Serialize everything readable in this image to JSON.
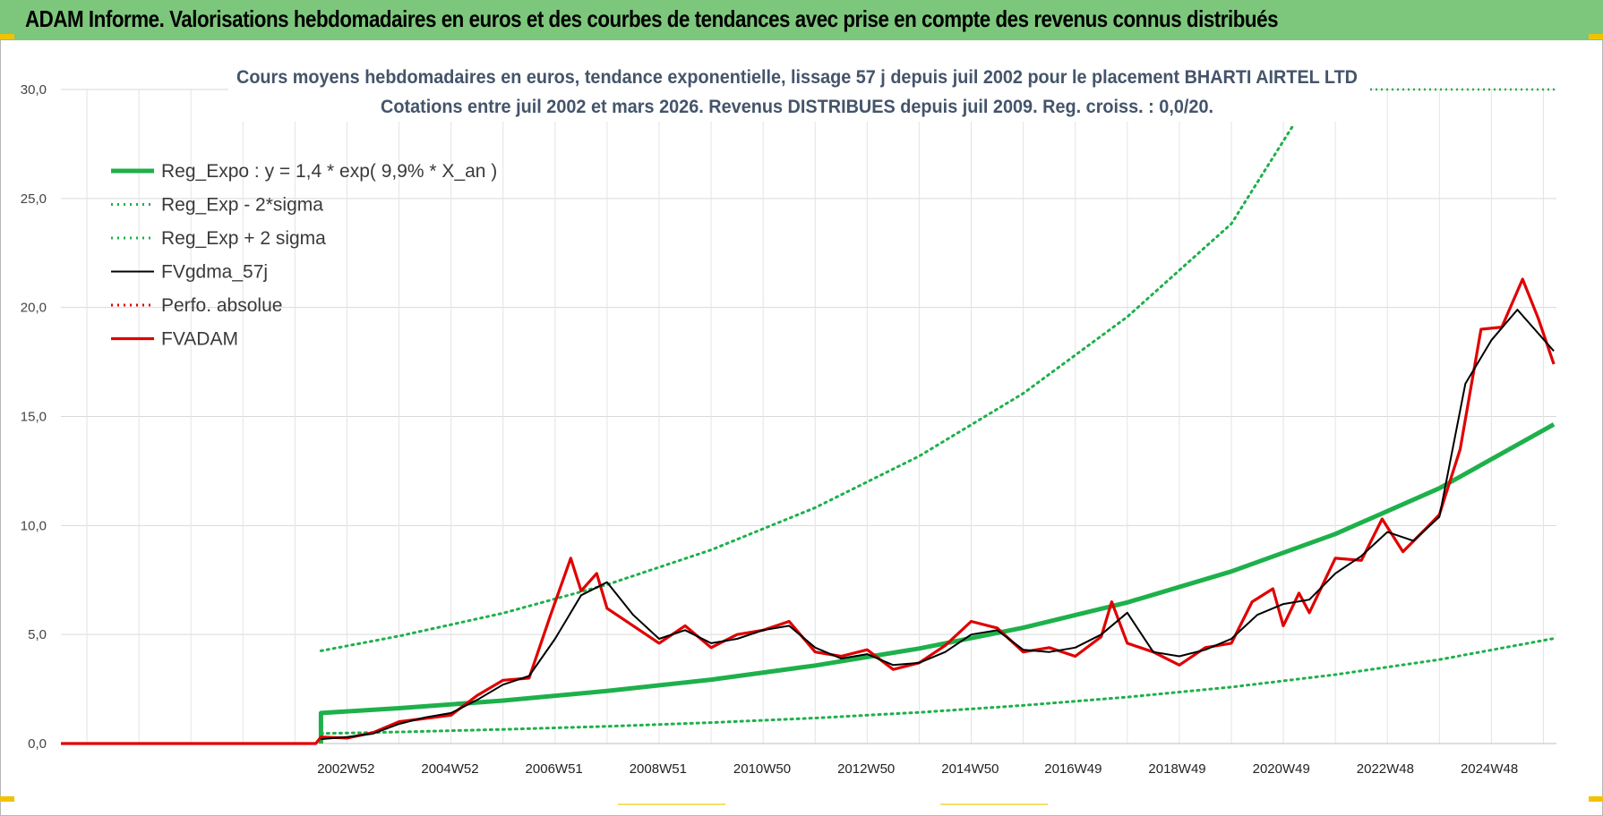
{
  "banner": {
    "title": "ADAM Informe. Valorisations hebdomadaires en euros et des courbes de tendances avec prise en compte des revenus connus distribués",
    "background": "#7cc77c"
  },
  "chart_data": {
    "type": "line",
    "title": "Cours moyens hebdomadaires en euros, tendance exponentielle, lissage 57 j depuis juil 2002 pour le placement BHARTI AIRTEL LTD",
    "subtitle": "Cotations entre juil 2002 et mars 2026. Revenus DISTRIBUES depuis juil 2009. Reg. croiss. : 0,0/20.",
    "xlabel": "",
    "ylabel": "",
    "ylim": [
      0,
      30
    ],
    "y_ticks": [
      "0,0",
      "5,0",
      "10,0",
      "15,0",
      "20,0",
      "25,0",
      "30,0"
    ],
    "x_tick_labels": [
      "2002W52",
      "2004W52",
      "2006W51",
      "2008W51",
      "2010W50",
      "2012W50",
      "2014W50",
      "2016W49",
      "2018W49",
      "2020W49",
      "2022W48",
      "2024W48"
    ],
    "x_tick_years": [
      2002.98,
      2004.98,
      2006.98,
      2008.98,
      2010.98,
      2012.98,
      2014.98,
      2016.96,
      2018.96,
      2020.96,
      2022.96,
      2024.96
    ],
    "x_range": [
      1997.5,
      2026.25
    ],
    "grid": true,
    "legend_position": "top-left",
    "regression": {
      "a": 1.4,
      "rate_pct": 9.9,
      "start_year": 2002.5
    },
    "series": [
      {
        "name": "Reg_Expo : y = 1,4 * exp( 9,9% *  X_an )",
        "color": "#1db04b",
        "style": "solid-thick",
        "x": [
          1997.5,
          2002.5,
          2002.5,
          2004,
          2006,
          2008,
          2010,
          2012,
          2014,
          2016,
          2018,
          2020,
          2022,
          2024,
          2026.2
        ],
        "y": [
          null,
          0,
          1.4,
          1.62,
          1.97,
          2.41,
          2.93,
          3.58,
          4.36,
          5.31,
          6.47,
          7.89,
          9.61,
          11.71,
          14.64
        ]
      },
      {
        "name": "Reg_Exp - 2*sigma",
        "color": "#1db04b",
        "style": "dotted",
        "x": [
          2002.5,
          2004,
          2006,
          2008,
          2010,
          2012,
          2014,
          2016,
          2018,
          2020,
          2022,
          2024,
          2026.2
        ],
        "y": [
          0.46,
          0.53,
          0.65,
          0.79,
          0.96,
          1.17,
          1.43,
          1.75,
          2.13,
          2.59,
          3.16,
          3.85,
          4.82
        ]
      },
      {
        "name": "Reg_Exp + 2 sigma",
        "color": "#1db04b",
        "style": "dotted",
        "x": [
          2002.5,
          2004,
          2006,
          2008,
          2010,
          2012,
          2014,
          2016,
          2018,
          2020,
          2021.2
        ],
        "y": [
          4.25,
          4.93,
          5.98,
          7.29,
          8.88,
          10.82,
          13.18,
          16.06,
          19.57,
          23.84,
          28.4
        ]
      },
      {
        "name": "FVgdma_57j",
        "color": "#000000",
        "style": "solid",
        "x": [
          2002.5,
          2003.0,
          2003.5,
          2004.0,
          2004.5,
          2005.0,
          2005.5,
          2006.0,
          2006.5,
          2007.0,
          2007.5,
          2008.0,
          2008.5,
          2009.0,
          2009.5,
          2010.0,
          2010.5,
          2011.0,
          2011.5,
          2012.0,
          2012.5,
          2013.0,
          2013.5,
          2014.0,
          2014.5,
          2015.0,
          2015.5,
          2016.0,
          2016.5,
          2017.0,
          2017.5,
          2018.0,
          2018.5,
          2019.0,
          2019.5,
          2020.0,
          2020.5,
          2021.0,
          2021.5,
          2022.0,
          2022.5,
          2023.0,
          2023.5,
          2024.0,
          2024.5,
          2025.0,
          2025.5,
          2026.2
        ],
        "y": [
          0.2,
          0.3,
          0.45,
          0.9,
          1.2,
          1.4,
          2.0,
          2.7,
          3.1,
          4.8,
          6.8,
          7.4,
          5.9,
          4.8,
          5.2,
          4.6,
          4.8,
          5.2,
          5.4,
          4.4,
          3.9,
          4.1,
          3.6,
          3.7,
          4.2,
          5.0,
          5.2,
          4.3,
          4.2,
          4.4,
          5.0,
          6.0,
          4.2,
          4.0,
          4.3,
          4.8,
          5.9,
          6.4,
          6.6,
          7.8,
          8.6,
          9.7,
          9.3,
          10.4,
          16.5,
          18.5,
          19.9,
          18.0
        ]
      },
      {
        "name": "Perfo. absolue",
        "color": "#e00000",
        "style": "dotted",
        "x": [],
        "y": []
      },
      {
        "name": "FVADAM",
        "color": "#e00000",
        "style": "solid-thick",
        "x": [
          1997.5,
          2002.4,
          2002.5,
          2003.0,
          2003.5,
          2004.0,
          2004.5,
          2005.0,
          2005.5,
          2006.0,
          2006.5,
          2006.9,
          2007.3,
          2007.5,
          2007.8,
          2008.0,
          2008.5,
          2009.0,
          2009.5,
          2010.0,
          2010.5,
          2011.0,
          2011.5,
          2012.0,
          2012.5,
          2013.0,
          2013.5,
          2014.0,
          2014.5,
          2015.0,
          2015.5,
          2016.0,
          2016.5,
          2017.0,
          2017.5,
          2017.7,
          2018.0,
          2018.5,
          2019.0,
          2019.5,
          2020.0,
          2020.4,
          2020.8,
          2021.0,
          2021.3,
          2021.5,
          2022.0,
          2022.5,
          2022.9,
          2023.3,
          2023.8,
          2024.0,
          2024.4,
          2024.8,
          2025.2,
          2025.6,
          2025.9,
          2026.2
        ],
        "y": [
          0,
          0,
          0.3,
          0.25,
          0.5,
          1.0,
          1.15,
          1.3,
          2.2,
          2.9,
          3.0,
          5.8,
          8.5,
          7.0,
          7.8,
          6.2,
          5.4,
          4.6,
          5.4,
          4.4,
          5.0,
          5.2,
          5.6,
          4.2,
          4.0,
          4.3,
          3.4,
          3.7,
          4.5,
          5.6,
          5.3,
          4.2,
          4.4,
          4.0,
          4.9,
          6.5,
          4.6,
          4.2,
          3.6,
          4.4,
          4.6,
          6.5,
          7.1,
          5.4,
          6.9,
          6.0,
          8.5,
          8.4,
          10.3,
          8.8,
          10.0,
          10.5,
          13.5,
          19.0,
          19.1,
          21.3,
          19.5,
          17.4
        ]
      }
    ]
  }
}
